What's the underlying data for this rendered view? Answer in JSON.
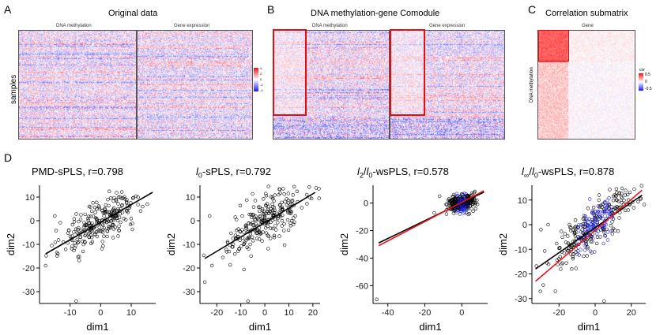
{
  "panels": {
    "A": {
      "letter": "A",
      "title": "Original data",
      "left_label": "DNA methylation",
      "right_label": "Gene expression",
      "y_label": "samples",
      "legend": {
        "ticks": [
          "4",
          "2",
          "0",
          "-2",
          "-4"
        ]
      }
    },
    "B": {
      "letter": "B",
      "title": "DNA methylation-gene Comodule",
      "left_label": "DNA methylation",
      "right_label": "Gene expression"
    },
    "C": {
      "letter": "C",
      "title": "Correlation submatrix",
      "top_label": "Gene",
      "y_label": "DNA methylation",
      "legend": {
        "title": "cor",
        "ticks": [
          "0.5",
          "0",
          "-0.5"
        ]
      }
    },
    "D": {
      "letter": "D"
    }
  },
  "colors": {
    "red": "#e8141c",
    "blue": "#1a1aee",
    "box_red": "#e01010"
  },
  "chart_data": [
    {
      "type": "scatter",
      "title": "PMD-sPLS, r=0.798",
      "xlabel": "dim1",
      "ylabel": "dim2",
      "xlim": [
        -20,
        18
      ],
      "ylim": [
        -35,
        15
      ],
      "xticks": [
        -10,
        0,
        10
      ],
      "xtick_labels": [
        "-10",
        "0",
        "10"
      ],
      "yticks": [
        10,
        0,
        -10,
        -20,
        -30
      ],
      "ytick_labels": [
        "10",
        "0",
        "-10",
        "-20",
        "-30"
      ],
      "lines": [
        {
          "color": "black",
          "x": [
            -18,
            17
          ],
          "y": [
            -14,
            12
          ]
        }
      ],
      "point_cloud": {
        "n": 260,
        "center": [
          0,
          0
        ],
        "slope": 0.74,
        "sx": 6.5,
        "noise": 4.5
      },
      "outliers": [
        [
          -8,
          -34
        ],
        [
          -18,
          -19
        ],
        [
          -14,
          -14
        ],
        [
          -15,
          2
        ]
      ]
    },
    {
      "type": "scatter",
      "title": "l0-sPLS, r=0.792",
      "title_parts": [
        "l",
        "0",
        "-sPLS, r=0.792"
      ],
      "xlabel": "dim1",
      "ylabel": "dim2",
      "xlim": [
        -27,
        23
      ],
      "ylim": [
        -35,
        15
      ],
      "xticks": [
        -20,
        -10,
        0,
        10,
        20
      ],
      "xtick_labels": [
        "-20",
        "-10",
        "0",
        "10",
        "20"
      ],
      "yticks": [
        10,
        0,
        -10,
        -20,
        -30
      ],
      "ytick_labels": [
        "10",
        "0",
        "-10",
        "-20",
        "-30"
      ],
      "lines": [
        {
          "color": "black",
          "x": [
            -25,
            21
          ],
          "y": [
            -16,
            12
          ]
        }
      ],
      "point_cloud": {
        "n": 260,
        "center": [
          0,
          0
        ],
        "slope": 0.6,
        "sx": 8.5,
        "noise": 4.5
      },
      "outliers": [
        [
          -7,
          -34
        ],
        [
          -25,
          -26
        ],
        [
          -22,
          -19
        ],
        [
          -23,
          2
        ]
      ]
    },
    {
      "type": "scatter",
      "title": "l2/l0-wsPLS, r=0.578",
      "title_parts": [
        "l",
        "2",
        "/",
        "l",
        "0",
        "-wsPLS, r=0.578"
      ],
      "xlabel": "dim1",
      "ylabel": "dim2",
      "xlim": [
        -48,
        14
      ],
      "ylim": [
        -73,
        13
      ],
      "xticks": [
        -40,
        -20,
        0
      ],
      "xtick_labels": [
        "-40",
        "-20",
        "0"
      ],
      "yticks": [
        0,
        -20,
        -40,
        -60
      ],
      "ytick_labels": [
        "0",
        "-20",
        "-40",
        "-60"
      ],
      "lines": [
        {
          "color": "black",
          "x": [
            -45,
            12
          ],
          "y": [
            -29,
            8
          ]
        },
        {
          "color": "red",
          "x": [
            -45,
            12
          ],
          "y": [
            -31,
            9
          ]
        }
      ],
      "point_cloud": {
        "n": 320,
        "center": [
          0,
          0
        ],
        "slope": 0.2,
        "sx": 3.5,
        "noise": 3.2,
        "blue_fraction": 0.3
      },
      "outliers": [
        [
          -46,
          -70
        ],
        [
          -7,
          3
        ],
        [
          -12,
          5
        ]
      ]
    },
    {
      "type": "scatter",
      "title": "l∞/l0-wsPLS, r=0.878",
      "title_parts": [
        "l",
        "∞",
        "/",
        "l",
        "0",
        "-wsPLS, r=0.878"
      ],
      "xlabel": "dim1",
      "ylabel": "dim2",
      "xlim": [
        -35,
        28
      ],
      "ylim": [
        -32,
        16
      ],
      "xticks": [
        -20,
        0,
        20
      ],
      "xtick_labels": [
        "-20",
        "0",
        "20"
      ],
      "yticks": [
        10,
        0,
        -10,
        -20,
        -30
      ],
      "ytick_labels": [
        "10",
        "0",
        "-10",
        "-20",
        "-30"
      ],
      "lines": [
        {
          "color": "black",
          "x": [
            -33,
            26
          ],
          "y": [
            -18,
            12
          ]
        },
        {
          "color": "red",
          "x": [
            -33,
            26
          ],
          "y": [
            -23,
            14
          ]
        }
      ],
      "point_cloud": {
        "n": 330,
        "center": [
          0,
          0
        ],
        "slope": 0.56,
        "sx": 11,
        "noise": 4.5,
        "blue_fraction": 0.35
      },
      "outliers": [
        [
          5,
          -31
        ],
        [
          -22,
          -27
        ],
        [
          -30,
          -2
        ],
        [
          -26,
          0
        ]
      ]
    }
  ]
}
